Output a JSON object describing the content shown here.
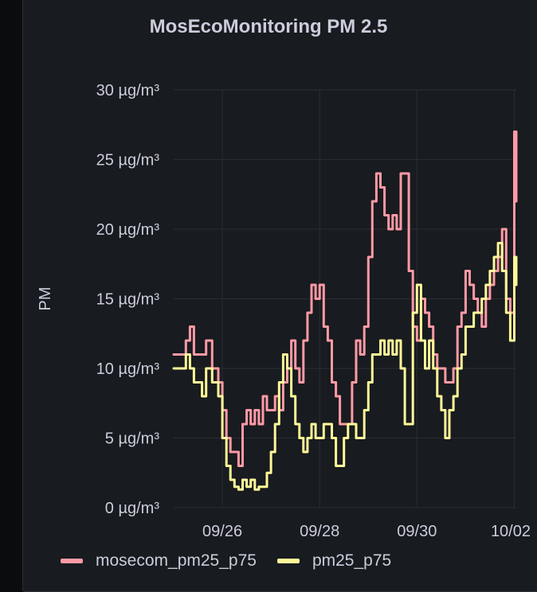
{
  "panel": {
    "title": "MosEcoMonitoring PM 2.5"
  },
  "chart_data": {
    "type": "line",
    "title": "MosEcoMonitoring PM 2.5",
    "xlabel": "",
    "ylabel": "PM",
    "y_unit": "µg/m³",
    "ylim": [
      0,
      30
    ],
    "y_ticks": [
      {
        "value": 0,
        "label": "0 µg/m³"
      },
      {
        "value": 5,
        "label": "5 µg/m³"
      },
      {
        "value": 10,
        "label": "10 µg/m³"
      },
      {
        "value": 15,
        "label": "15 µg/m³"
      },
      {
        "value": 20,
        "label": "20 µg/m³"
      },
      {
        "value": 25,
        "label": "25 µg/m³"
      },
      {
        "value": 30,
        "label": "30 µg/m³"
      }
    ],
    "xlim": [
      "09/25 00:00",
      "10/02 01:00"
    ],
    "x_ticks": [
      "09/26",
      "09/28",
      "09/30",
      "10/02"
    ],
    "grid": true,
    "legend_position": "bottom-left",
    "series": [
      {
        "name": "mosecom_pm25_p75",
        "color": "#ff9aa6",
        "points": [
          [
            "09/25 00:00",
            11
          ],
          [
            "09/25 03:00",
            11
          ],
          [
            "09/25 06:00",
            12
          ],
          [
            "09/25 08:00",
            13
          ],
          [
            "09/25 10:00",
            11
          ],
          [
            "09/25 14:00",
            11
          ],
          [
            "09/25 16:00",
            12
          ],
          [
            "09/25 19:00",
            10
          ],
          [
            "09/25 22:00",
            9
          ],
          [
            "09/26 00:00",
            7
          ],
          [
            "09/26 02:00",
            5
          ],
          [
            "09/26 04:00",
            4
          ],
          [
            "09/26 06:00",
            4
          ],
          [
            "09/26 08:00",
            3
          ],
          [
            "09/26 10:00",
            6
          ],
          [
            "09/26 12:00",
            7
          ],
          [
            "09/26 14:00",
            6
          ],
          [
            "09/26 16:00",
            7
          ],
          [
            "09/26 18:00",
            6
          ],
          [
            "09/26 20:00",
            8
          ],
          [
            "09/26 22:00",
            7
          ],
          [
            "09/27 00:00",
            7
          ],
          [
            "09/27 02:00",
            8
          ],
          [
            "09/27 04:00",
            7
          ],
          [
            "09/27 06:00",
            9
          ],
          [
            "09/27 08:00",
            10
          ],
          [
            "09/27 10:00",
            12
          ],
          [
            "09/27 12:00",
            10
          ],
          [
            "09/27 14:00",
            9
          ],
          [
            "09/27 16:00",
            12
          ],
          [
            "09/27 18:00",
            14
          ],
          [
            "09/27 20:00",
            16
          ],
          [
            "09/27 22:00",
            15
          ],
          [
            "09/28 00:00",
            16
          ],
          [
            "09/28 02:00",
            13
          ],
          [
            "09/28 04:00",
            12
          ],
          [
            "09/28 06:00",
            9
          ],
          [
            "09/28 08:00",
            8
          ],
          [
            "09/28 10:00",
            6
          ],
          [
            "09/28 12:00",
            6
          ],
          [
            "09/28 14:00",
            6
          ],
          [
            "09/28 16:00",
            9
          ],
          [
            "09/28 18:00",
            12
          ],
          [
            "09/28 20:00",
            11
          ],
          [
            "09/28 22:00",
            13
          ],
          [
            "09/29 00:00",
            18
          ],
          [
            "09/29 02:00",
            22
          ],
          [
            "09/29 04:00",
            24
          ],
          [
            "09/29 06:00",
            23
          ],
          [
            "09/29 08:00",
            21
          ],
          [
            "09/29 10:00",
            20
          ],
          [
            "09/29 12:00",
            21
          ],
          [
            "09/29 14:00",
            20
          ],
          [
            "09/29 16:00",
            24
          ],
          [
            "09/29 18:00",
            24
          ],
          [
            "09/29 20:00",
            17
          ],
          [
            "09/29 22:00",
            13
          ],
          [
            "09/30 00:00",
            12
          ],
          [
            "09/30 02:00",
            15
          ],
          [
            "09/30 04:00",
            14
          ],
          [
            "09/30 06:00",
            13
          ],
          [
            "09/30 08:00",
            11
          ],
          [
            "09/30 10:00",
            10
          ],
          [
            "09/30 12:00",
            10
          ],
          [
            "09/30 14:00",
            9
          ],
          [
            "09/30 16:00",
            9
          ],
          [
            "09/30 18:00",
            10
          ],
          [
            "09/30 20:00",
            13
          ],
          [
            "09/30 22:00",
            14
          ],
          [
            "10/01 00:00",
            17
          ],
          [
            "10/01 02:00",
            16
          ],
          [
            "10/01 04:00",
            15
          ],
          [
            "10/01 06:00",
            14
          ],
          [
            "10/01 08:00",
            13
          ],
          [
            "10/01 10:00",
            15
          ],
          [
            "10/01 12:00",
            16
          ],
          [
            "10/01 14:00",
            17
          ],
          [
            "10/01 16:00",
            18
          ],
          [
            "10/01 18:00",
            20
          ],
          [
            "10/01 20:00",
            15
          ],
          [
            "10/01 22:00",
            14
          ],
          [
            "10/02 00:00",
            27
          ],
          [
            "10/02 01:00",
            22
          ]
        ]
      },
      {
        "name": "pm25_p75",
        "color": "#fff899",
        "points": [
          [
            "09/25 00:00",
            10
          ],
          [
            "09/25 03:00",
            10
          ],
          [
            "09/25 06:00",
            11
          ],
          [
            "09/25 08:00",
            10
          ],
          [
            "09/25 10:00",
            9
          ],
          [
            "09/25 14:00",
            8
          ],
          [
            "09/25 16:00",
            10
          ],
          [
            "09/25 19:00",
            9
          ],
          [
            "09/25 22:00",
            8
          ],
          [
            "09/26 00:00",
            5
          ],
          [
            "09/26 02:00",
            3
          ],
          [
            "09/26 04:00",
            2
          ],
          [
            "09/26 06:00",
            1.5
          ],
          [
            "09/26 08:00",
            1.3
          ],
          [
            "09/26 10:00",
            2
          ],
          [
            "09/26 12:00",
            1.5
          ],
          [
            "09/26 14:00",
            2
          ],
          [
            "09/26 16:00",
            1.3
          ],
          [
            "09/26 18:00",
            1.5
          ],
          [
            "09/26 20:00",
            1.5
          ],
          [
            "09/26 22:00",
            2.5
          ],
          [
            "09/27 00:00",
            4
          ],
          [
            "09/27 02:00",
            6
          ],
          [
            "09/27 04:00",
            9
          ],
          [
            "09/27 06:00",
            11
          ],
          [
            "09/27 08:00",
            10
          ],
          [
            "09/27 10:00",
            8
          ],
          [
            "09/27 12:00",
            6
          ],
          [
            "09/27 14:00",
            5
          ],
          [
            "09/27 16:00",
            4
          ],
          [
            "09/27 18:00",
            5
          ],
          [
            "09/27 20:00",
            6
          ],
          [
            "09/27 22:00",
            5
          ],
          [
            "09/28 00:00",
            5
          ],
          [
            "09/28 02:00",
            6
          ],
          [
            "09/28 04:00",
            6
          ],
          [
            "09/28 06:00",
            5
          ],
          [
            "09/28 08:00",
            3
          ],
          [
            "09/28 10:00",
            3
          ],
          [
            "09/28 12:00",
            5
          ],
          [
            "09/28 14:00",
            6
          ],
          [
            "09/28 16:00",
            6
          ],
          [
            "09/28 18:00",
            5
          ],
          [
            "09/28 20:00",
            5
          ],
          [
            "09/28 22:00",
            7
          ],
          [
            "09/29 00:00",
            9
          ],
          [
            "09/29 02:00",
            11
          ],
          [
            "09/29 04:00",
            11
          ],
          [
            "09/29 06:00",
            12
          ],
          [
            "09/29 08:00",
            11
          ],
          [
            "09/29 10:00",
            12
          ],
          [
            "09/29 12:00",
            11
          ],
          [
            "09/29 14:00",
            12
          ],
          [
            "09/29 16:00",
            10
          ],
          [
            "09/29 18:00",
            6
          ],
          [
            "09/29 20:00",
            6
          ],
          [
            "09/29 22:00",
            14
          ],
          [
            "09/30 00:00",
            16
          ],
          [
            "09/30 02:00",
            12
          ],
          [
            "09/30 04:00",
            10
          ],
          [
            "09/30 06:00",
            12
          ],
          [
            "09/30 08:00",
            10
          ],
          [
            "09/30 10:00",
            8
          ],
          [
            "09/30 12:00",
            7
          ],
          [
            "09/30 14:00",
            5
          ],
          [
            "09/30 16:00",
            7
          ],
          [
            "09/30 18:00",
            8
          ],
          [
            "09/30 20:00",
            10
          ],
          [
            "09/30 22:00",
            11
          ],
          [
            "10/01 00:00",
            13
          ],
          [
            "10/01 02:00",
            13
          ],
          [
            "10/01 04:00",
            14
          ],
          [
            "10/01 06:00",
            14
          ],
          [
            "10/01 08:00",
            15
          ],
          [
            "10/01 10:00",
            16
          ],
          [
            "10/01 12:00",
            17
          ],
          [
            "10/01 14:00",
            18
          ],
          [
            "10/01 16:00",
            19
          ],
          [
            "10/01 18:00",
            17
          ],
          [
            "10/01 20:00",
            14
          ],
          [
            "10/01 22:00",
            12
          ],
          [
            "10/02 00:00",
            18
          ],
          [
            "10/02 01:00",
            16
          ]
        ]
      }
    ]
  }
}
